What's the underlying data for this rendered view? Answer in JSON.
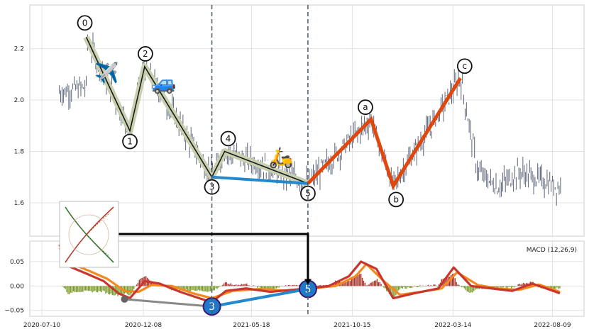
{
  "chart_data": [
    {
      "type": "candlestick",
      "panel": "price",
      "ylim": [
        1.47,
        2.37
      ],
      "yticks": [
        1.6,
        1.8,
        2.0,
        2.2
      ],
      "ytick_labels": [
        "1.6",
        "1.8",
        "2.0",
        "2.2"
      ],
      "grid": true,
      "series_note": "daily price bars from 2020-08 to 2022-08",
      "wave_labels": [
        {
          "label": "0",
          "date": "2020-09-14",
          "value": 2.245
        },
        {
          "label": "1",
          "date": "2020-11-18",
          "value": 1.88
        },
        {
          "label": "2",
          "date": "2020-12-10",
          "value": 2.13
        },
        {
          "label": "3",
          "date": "2021-03-20",
          "value": 1.7
        },
        {
          "label": "4",
          "date": "2021-04-08",
          "value": 1.8
        },
        {
          "label": "5",
          "date": "2021-08-10",
          "value": 1.675
        },
        {
          "label": "a",
          "date": "2021-11-12",
          "value": 1.925
        },
        {
          "label": "b",
          "date": "2021-12-15",
          "value": 1.665
        },
        {
          "label": "c",
          "date": "2022-03-25",
          "value": 2.085
        }
      ],
      "impulse_path": [
        "0",
        "1",
        "2",
        "3",
        "4",
        "5"
      ],
      "correction_path": [
        "5",
        "a",
        "b",
        "c"
      ],
      "blue_segment": [
        "3",
        "5"
      ],
      "vlines_dates": [
        "2021-03-20",
        "2021-08-10"
      ],
      "emojis": [
        {
          "name": "airplane",
          "glyph": "✈️",
          "date": "2020-10-15",
          "value": 2.08
        },
        {
          "name": "car",
          "glyph": "🚙",
          "date": "2021-01-08",
          "value": 2.04
        },
        {
          "name": "scooter",
          "glyph": "🛵",
          "date": "2021-07-01",
          "value": 1.75
        }
      ]
    },
    {
      "type": "line",
      "panel": "macd",
      "legend": "MACD (12,26,9)",
      "legend_position": "top-right",
      "ylim": [
        -0.062,
        0.092
      ],
      "yticks": [
        -0.05,
        0.0,
        0.05
      ],
      "ytick_labels": [
        "−0.05",
        "0.00",
        "0.05"
      ],
      "xtick_dates": [
        "2020-07-10",
        "2020-12-08",
        "2021-05-18",
        "2021-10-15",
        "2022-03-14",
        "2022-08-09"
      ],
      "xtick_labels": [
        "2020-07-10",
        "2020-12-08",
        "2021-05-18",
        "2021-10-15",
        "2022-03-14",
        "2022-08-09"
      ],
      "macd_points": [
        [
          "2020-08-05",
          0.085
        ],
        [
          "2020-08-20",
          0.04
        ],
        [
          "2020-09-15",
          0.025
        ],
        [
          "2020-10-10",
          0.01
        ],
        [
          "2020-11-01",
          -0.015
        ],
        [
          "2020-11-18",
          -0.025
        ],
        [
          "2020-12-10",
          0.01
        ],
        [
          "2021-01-01",
          0.005
        ],
        [
          "2021-02-01",
          -0.012
        ],
        [
          "2021-03-01",
          -0.025
        ],
        [
          "2021-03-20",
          -0.033
        ],
        [
          "2021-04-10",
          -0.01
        ],
        [
          "2021-05-10",
          -0.005
        ],
        [
          "2021-06-15",
          -0.012
        ],
        [
          "2021-08-10",
          -0.005
        ],
        [
          "2021-09-10",
          0.0
        ],
        [
          "2021-10-10",
          0.02
        ],
        [
          "2021-10-28",
          0.05
        ],
        [
          "2021-11-20",
          0.035
        ],
        [
          "2021-12-15",
          -0.025
        ],
        [
          "2022-01-15",
          -0.015
        ],
        [
          "2022-02-20",
          -0.005
        ],
        [
          "2022-03-15",
          0.038
        ],
        [
          "2022-04-10",
          0.0
        ],
        [
          "2022-05-10",
          -0.005
        ],
        [
          "2022-06-10",
          -0.01
        ],
        [
          "2022-07-10",
          0.005
        ],
        [
          "2022-08-20",
          -0.015
        ]
      ],
      "signal_points": [
        [
          "2020-08-05",
          0.078
        ],
        [
          "2020-08-25",
          0.045
        ],
        [
          "2020-09-20",
          0.03
        ],
        [
          "2020-10-15",
          0.015
        ],
        [
          "2020-11-10",
          -0.01
        ],
        [
          "2020-12-01",
          -0.012
        ],
        [
          "2020-12-20",
          0.002
        ],
        [
          "2021-01-20",
          0.0
        ],
        [
          "2021-02-20",
          -0.015
        ],
        [
          "2021-03-20",
          -0.025
        ],
        [
          "2021-04-20",
          -0.01
        ],
        [
          "2021-06-01",
          -0.006
        ],
        [
          "2021-07-15",
          -0.01
        ],
        [
          "2021-08-15",
          -0.005
        ],
        [
          "2021-09-20",
          0.0
        ],
        [
          "2021-10-20",
          0.02
        ],
        [
          "2021-11-05",
          0.045
        ],
        [
          "2021-12-01",
          0.01
        ],
        [
          "2021-12-25",
          -0.018
        ],
        [
          "2022-01-25",
          -0.012
        ],
        [
          "2022-02-25",
          -0.005
        ],
        [
          "2022-03-20",
          0.028
        ],
        [
          "2022-04-20",
          0.002
        ],
        [
          "2022-05-20",
          -0.005
        ],
        [
          "2022-06-20",
          -0.008
        ],
        [
          "2022-07-20",
          0.003
        ],
        [
          "2022-08-20",
          -0.012
        ]
      ],
      "macd_markers": [
        {
          "label": "3",
          "date": "2021-03-20",
          "value": -0.042
        },
        {
          "label": "5",
          "date": "2021-08-10",
          "value": -0.006
        }
      ],
      "gray_point": {
        "date": "2020-11-10",
        "value": -0.027
      }
    }
  ],
  "colors": {
    "candle": "#5b6478",
    "impulse_line": "#1a1a1a",
    "impulse_band": "#c8d0b0",
    "correction_line": "#e0470f",
    "blue_line": "#2388cc",
    "macd_line": "#c8372d",
    "signal_line": "#f5891e",
    "hist_pos": "#a8332a",
    "hist_neg": "#7a9a2a",
    "marker_fill": "#1f78c8",
    "vline": "#4a5a6a",
    "gray_line": "#888888"
  }
}
